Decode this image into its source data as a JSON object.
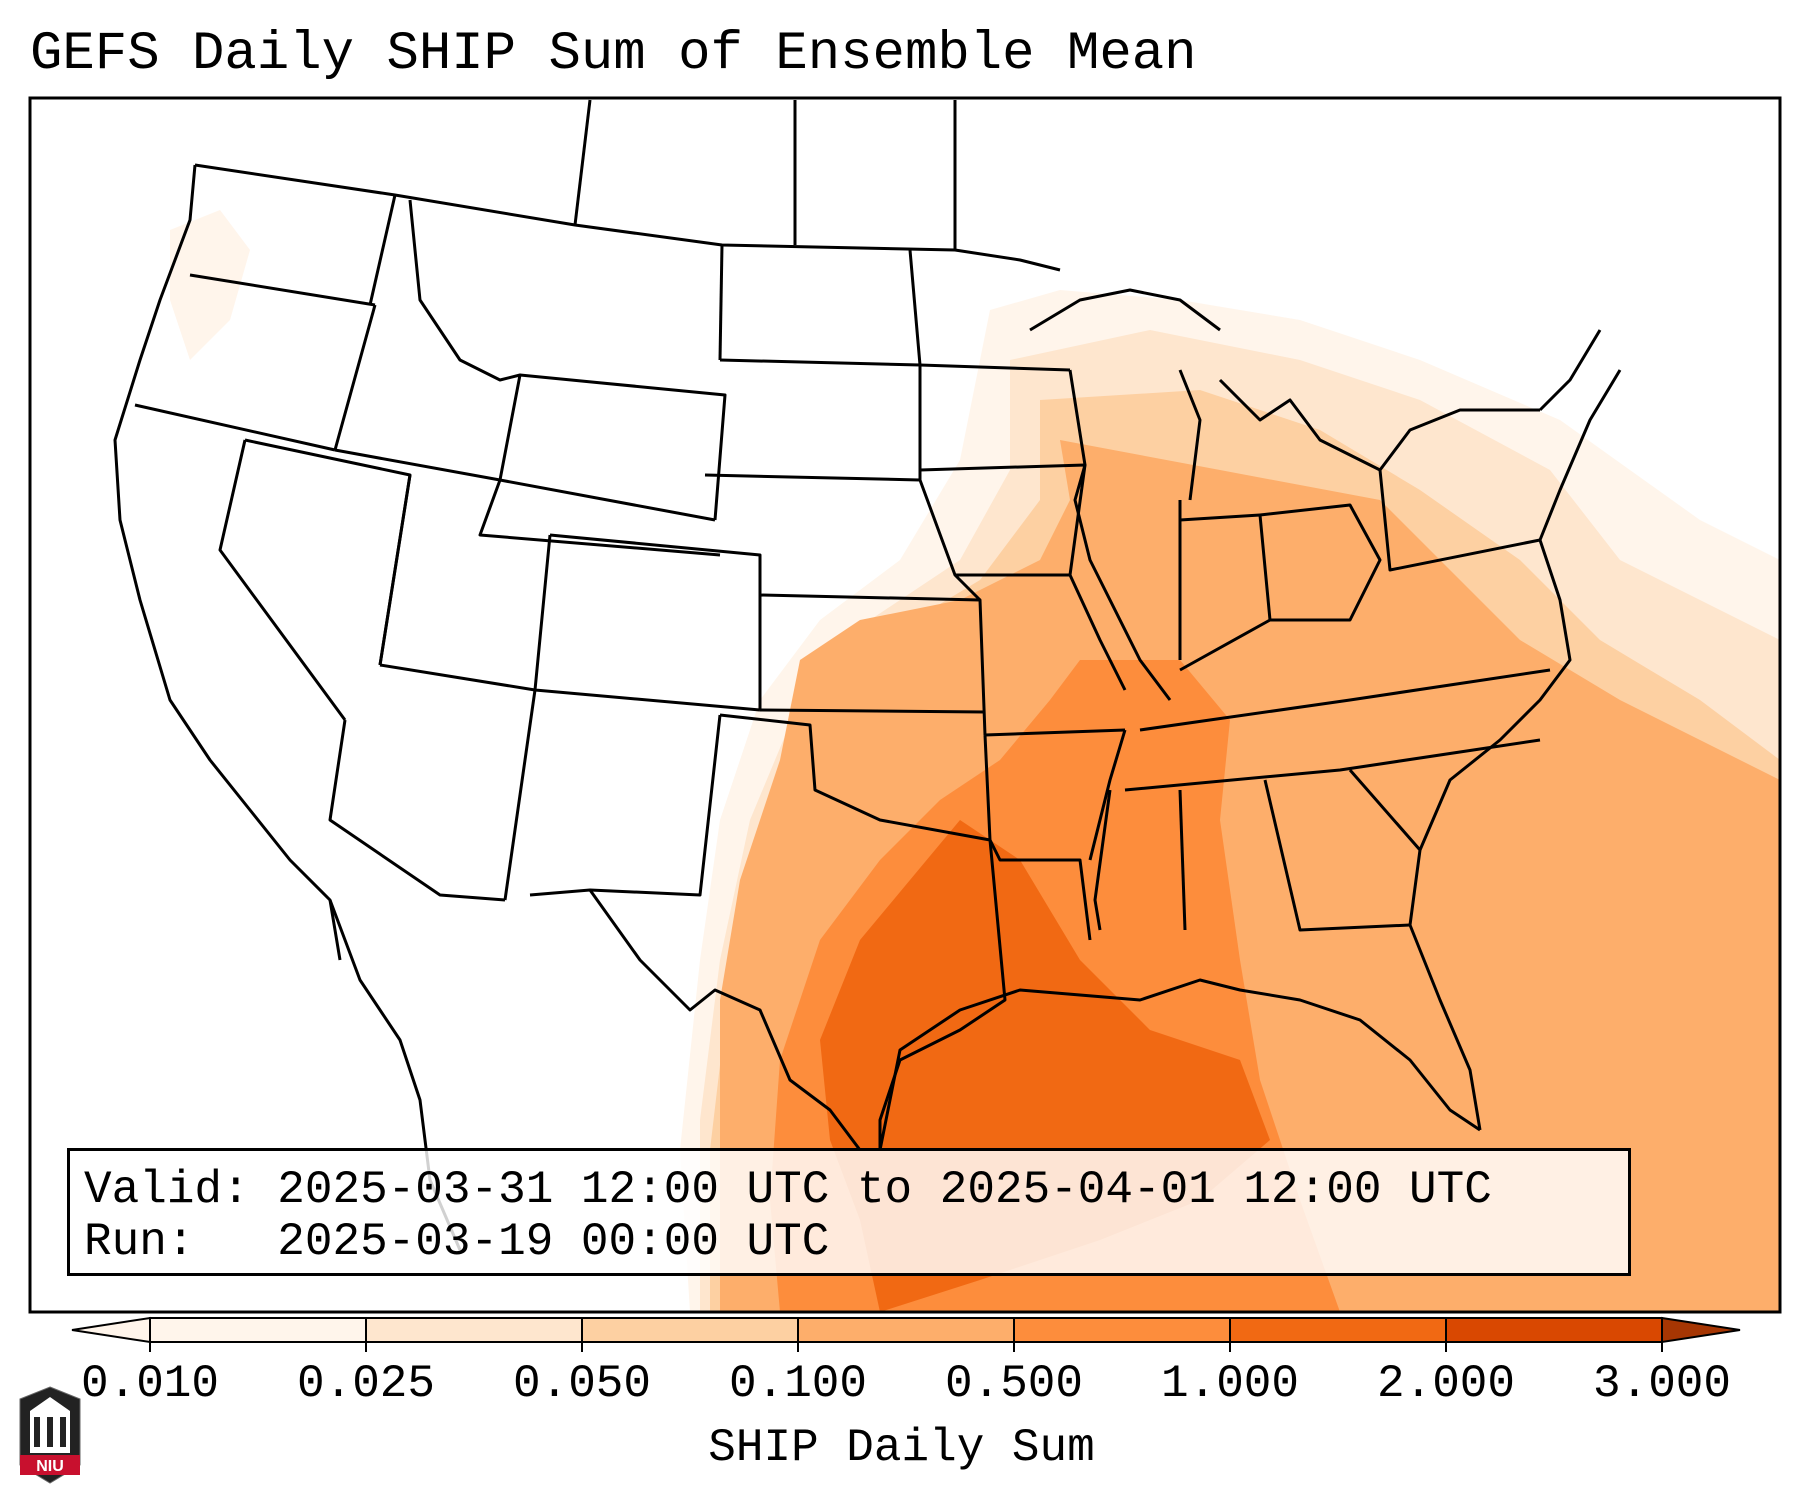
{
  "title": "GEFS Daily SHIP Sum of Ensemble Mean",
  "info": {
    "valid_label": "Valid:",
    "valid_value": "2025-03-31 12:00 UTC to 2025-04-01 12:00 UTC",
    "run_label": "Run:",
    "run_value": "2025-03-19 00:00 UTC"
  },
  "colorbar": {
    "label": "SHIP Daily Sum",
    "ticks": [
      "0.010",
      "0.025",
      "0.050",
      "0.100",
      "0.500",
      "1.000",
      "2.000",
      "3.000"
    ],
    "colors": [
      "#fff5eb",
      "#fee6ce",
      "#fdd0a2",
      "#fdae6b",
      "#fd8d3c",
      "#f16913",
      "#d94801",
      "#a63603"
    ],
    "extend": "both"
  },
  "logo": {
    "text": "NIU",
    "colors": {
      "red": "#c8102e",
      "black": "#222222"
    }
  },
  "map": {
    "region": "CONUS",
    "shading_colormap": "oranges"
  }
}
